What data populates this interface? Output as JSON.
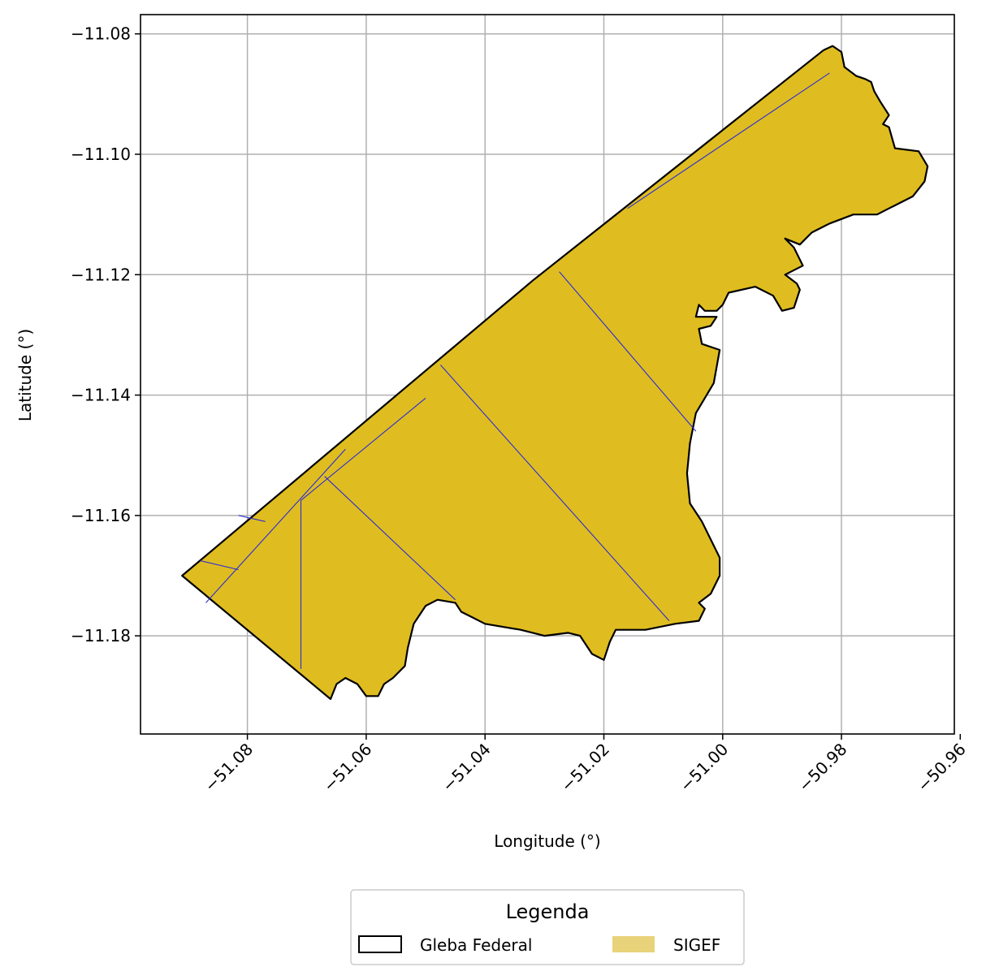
{
  "chart_data": {
    "type": "map",
    "xlabel": "Longitude (°)",
    "ylabel": "Latitude (°)",
    "xlim": [
      -51.098,
      -50.961
    ],
    "ylim": [
      -11.1963,
      -11.0768
    ],
    "grid": true,
    "x_ticks": [
      -51.08,
      -51.06,
      -51.04,
      -51.02,
      -51.0,
      -50.98,
      -50.96
    ],
    "x_tick_labels": [
      "−51.08",
      "−51.06",
      "−51.04",
      "−51.02",
      "−51.00",
      "−50.98",
      "−50.96"
    ],
    "y_ticks": [
      -11.08,
      -11.1,
      -11.12,
      -11.14,
      -11.16,
      -11.18
    ],
    "y_tick_labels": [
      "−11.08",
      "−11.10",
      "−11.12",
      "−11.14",
      "−11.16",
      "−11.18"
    ],
    "legend": {
      "title": "Legenda",
      "placement": "below",
      "entries": [
        {
          "name": "Gleba Federal",
          "style": "outline",
          "color": "#000000"
        },
        {
          "name": "SIGEF",
          "style": "fill",
          "color": "#e8d27a"
        }
      ]
    },
    "colors": {
      "fill": "#dfbd20",
      "outline": "#000000",
      "parcel_lines": "#2b2bd6",
      "grid": "#b0b0b0"
    },
    "polygon": [
      [
        -51.091,
        -11.17
      ],
      [
        -51.032,
        -11.121
      ],
      [
        -50.983,
        -11.0827
      ],
      [
        -50.9815,
        -11.082
      ],
      [
        -50.98,
        -11.083
      ],
      [
        -50.9795,
        -11.0855
      ],
      [
        -50.9775,
        -11.087
      ],
      [
        -50.976,
        -11.0875
      ],
      [
        -50.975,
        -11.088
      ],
      [
        -50.9745,
        -11.0895
      ],
      [
        -50.9735,
        -11.0912
      ],
      [
        -50.972,
        -11.0935
      ],
      [
        -50.973,
        -11.095
      ],
      [
        -50.972,
        -11.0955
      ],
      [
        -50.971,
        -11.099
      ],
      [
        -50.967,
        -11.0995
      ],
      [
        -50.9655,
        -11.102
      ],
      [
        -50.966,
        -11.1045
      ],
      [
        -50.968,
        -11.107
      ],
      [
        -50.971,
        -11.1085
      ],
      [
        -50.972,
        -11.109
      ],
      [
        -50.974,
        -11.11
      ],
      [
        -50.978,
        -11.11
      ],
      [
        -50.982,
        -11.1115
      ],
      [
        -50.985,
        -11.113
      ],
      [
        -50.987,
        -11.115
      ],
      [
        -50.9895,
        -11.114
      ],
      [
        -50.988,
        -11.1155
      ],
      [
        -50.9865,
        -11.1185
      ],
      [
        -50.9895,
        -11.12
      ],
      [
        -50.9875,
        -11.1215
      ],
      [
        -50.987,
        -11.1225
      ],
      [
        -50.988,
        -11.1255
      ],
      [
        -50.99,
        -11.126
      ],
      [
        -50.9915,
        -11.1235
      ],
      [
        -50.9945,
        -11.122
      ],
      [
        -50.999,
        -11.123
      ],
      [
        -51.0,
        -11.125
      ],
      [
        -51.001,
        -11.126
      ],
      [
        -51.003,
        -11.126
      ],
      [
        -51.004,
        -11.125
      ],
      [
        -51.0045,
        -11.127
      ],
      [
        -51.001,
        -11.127
      ],
      [
        -51.002,
        -11.1285
      ],
      [
        -51.004,
        -11.129
      ],
      [
        -51.0035,
        -11.1315
      ],
      [
        -51.0005,
        -11.1325
      ],
      [
        -51.0015,
        -11.138
      ],
      [
        -51.0045,
        -11.143
      ],
      [
        -51.0055,
        -11.148
      ],
      [
        -51.006,
        -11.153
      ],
      [
        -51.0055,
        -11.158
      ],
      [
        -51.0035,
        -11.161
      ],
      [
        -51.002,
        -11.164
      ],
      [
        -51.0005,
        -11.167
      ],
      [
        -51.0005,
        -11.17
      ],
      [
        -51.002,
        -11.173
      ],
      [
        -51.004,
        -11.1745
      ],
      [
        -51.003,
        -11.1755
      ],
      [
        -51.004,
        -11.1775
      ],
      [
        -51.008,
        -11.178
      ],
      [
        -51.013,
        -11.179
      ],
      [
        -51.018,
        -11.179
      ],
      [
        -51.019,
        -11.181
      ],
      [
        -51.02,
        -11.184
      ],
      [
        -51.022,
        -11.183
      ],
      [
        -51.024,
        -11.18
      ],
      [
        -51.026,
        -11.1795
      ],
      [
        -51.03,
        -11.18
      ],
      [
        -51.034,
        -11.179
      ],
      [
        -51.04,
        -11.178
      ],
      [
        -51.042,
        -11.177
      ],
      [
        -51.044,
        -11.176
      ],
      [
        -51.045,
        -11.1745
      ],
      [
        -51.048,
        -11.174
      ],
      [
        -51.05,
        -11.175
      ],
      [
        -51.052,
        -11.178
      ],
      [
        -51.053,
        -11.182
      ],
      [
        -51.0535,
        -11.185
      ],
      [
        -51.0555,
        -11.187
      ],
      [
        -51.057,
        -11.188
      ],
      [
        -51.058,
        -11.19
      ],
      [
        -51.06,
        -11.19
      ],
      [
        -51.0615,
        -11.188
      ],
      [
        -51.0635,
        -11.187
      ],
      [
        -51.065,
        -11.188
      ],
      [
        -51.066,
        -11.1905
      ],
      [
        -51.091,
        -11.17
      ]
    ],
    "parcel_lines": [
      [
        [
          -51.016,
          -11.109
        ],
        [
          -50.982,
          -11.0865
        ]
      ],
      [
        [
          -51.0275,
          -11.1195
        ],
        [
          -51.0045,
          -11.146
        ]
      ],
      [
        [
          -51.0475,
          -11.135
        ],
        [
          -51.009,
          -11.1775
        ]
      ],
      [
        [
          -51.067,
          -11.1535
        ],
        [
          -51.045,
          -11.174
        ]
      ],
      [
        [
          -51.0635,
          -11.149
        ],
        [
          -51.087,
          -11.1745
        ]
      ],
      [
        [
          -51.05,
          -11.1405
        ],
        [
          -51.071,
          -11.1575
        ]
      ],
      [
        [
          -51.071,
          -11.1575
        ],
        [
          -51.071,
          -11.1855
        ]
      ],
      [
        [
          -51.088,
          -11.1675
        ],
        [
          -51.0815,
          -11.169
        ]
      ],
      [
        [
          -51.0815,
          -11.16
        ],
        [
          -51.077,
          -11.161
        ]
      ]
    ]
  }
}
